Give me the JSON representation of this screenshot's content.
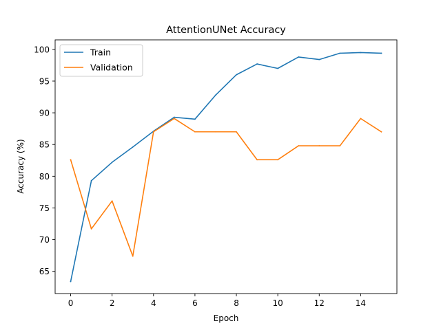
{
  "chart_data": {
    "type": "line",
    "title": "AttentionUNet Accuracy",
    "xlabel": "Epoch",
    "ylabel": "Accuracy (%)",
    "xlim": [
      -0.75,
      15.75
    ],
    "ylim": [
      61.5,
      101.5
    ],
    "xticks": [
      0,
      2,
      4,
      6,
      8,
      10,
      12,
      14
    ],
    "yticks": [
      65,
      70,
      75,
      80,
      85,
      90,
      95,
      100
    ],
    "x": [
      0,
      1,
      2,
      3,
      4,
      5,
      6,
      7,
      8,
      9,
      10,
      11,
      12,
      13,
      14,
      15
    ],
    "series": [
      {
        "name": "Train",
        "color": "#1f77b4",
        "values": [
          63.4,
          79.3,
          82.2,
          84.6,
          87.1,
          89.3,
          89.0,
          92.8,
          96.0,
          97.7,
          97.0,
          98.8,
          98.4,
          99.4,
          99.5,
          99.4
        ]
      },
      {
        "name": "Validation",
        "color": "#ff7f0e",
        "values": [
          82.6,
          71.7,
          76.1,
          67.4,
          87.0,
          89.1,
          87.0,
          87.0,
          87.0,
          82.6,
          82.6,
          84.8,
          84.8,
          84.8,
          89.1,
          87.0
        ]
      }
    ],
    "legend_position": "top-left",
    "grid": false
  }
}
